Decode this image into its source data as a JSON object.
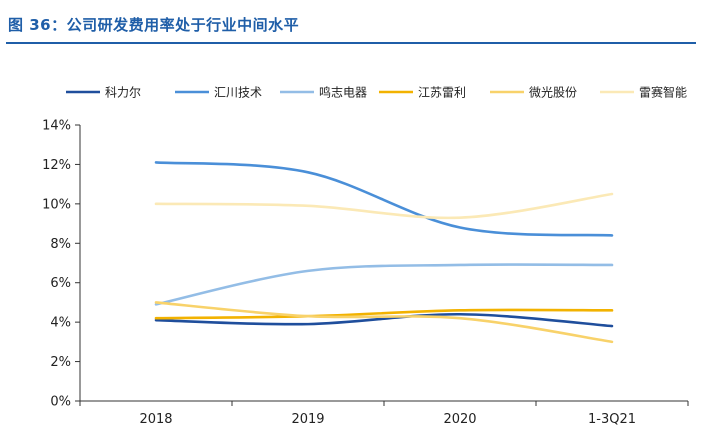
{
  "caption": "图 36：公司研发费用率处于行业中间水平",
  "chart_data": {
    "type": "line",
    "categories": [
      "2018",
      "2019",
      "2020",
      "1-3Q21"
    ],
    "ylim": [
      0,
      14
    ],
    "y_ticks": [
      0,
      2,
      4,
      6,
      8,
      10,
      12,
      14
    ],
    "y_tick_labels": [
      "0%",
      "2%",
      "4%",
      "6%",
      "8%",
      "10%",
      "12%",
      "14%"
    ],
    "legend_position": "top",
    "grid": false,
    "series": [
      {
        "name": "科力尔",
        "color": "#1f4e9c",
        "values": [
          4.1,
          3.9,
          4.4,
          3.8
        ]
      },
      {
        "name": "汇川技术",
        "color": "#4a8fd8",
        "values": [
          12.1,
          11.6,
          8.8,
          8.4
        ]
      },
      {
        "name": "鸣志电器",
        "color": "#93bde6",
        "values": [
          4.9,
          6.6,
          6.9,
          6.9
        ]
      },
      {
        "name": "江苏雷利",
        "color": "#f2b200",
        "values": [
          4.2,
          4.3,
          4.6,
          4.6
        ]
      },
      {
        "name": "微光股份",
        "color": "#f8d26a",
        "values": [
          5.0,
          4.3,
          4.2,
          3.0
        ]
      },
      {
        "name": "雷赛智能",
        "color": "#fbe9b6",
        "values": [
          10.0,
          9.9,
          9.3,
          10.5
        ]
      }
    ]
  }
}
